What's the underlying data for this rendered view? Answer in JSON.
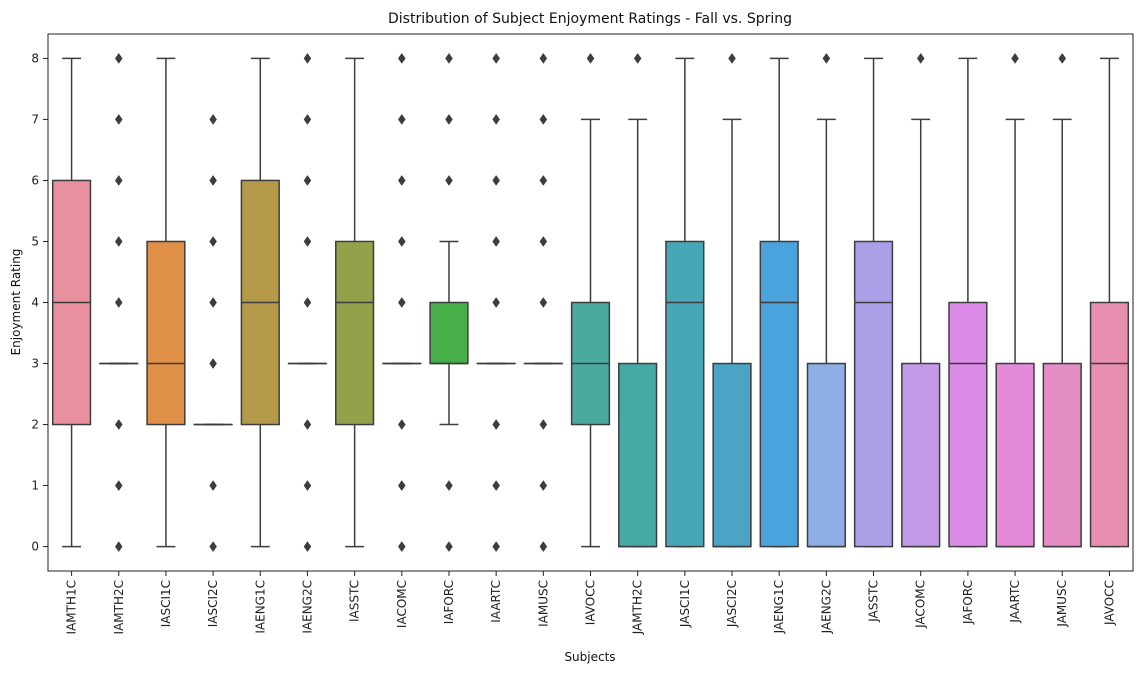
{
  "chart_data": {
    "type": "box",
    "title": "Distribution of Subject Enjoyment Ratings - Fall vs. Spring",
    "xlabel": "Subjects",
    "ylabel": "Enjoyment Rating",
    "ylim": [
      -0.4,
      8.4
    ],
    "yticks": [
      0,
      1,
      2,
      3,
      4,
      5,
      6,
      7,
      8
    ],
    "grid": false,
    "categories": [
      "IAMTH1C",
      "IAMTH2C",
      "IASCI1C",
      "IASCI2C",
      "IAENG1C",
      "IAENG2C",
      "IASSTC",
      "IACOMC",
      "IAFORC",
      "IAARTC",
      "IAMUSC",
      "IAVOCC",
      "JAMTH2C",
      "JASCI1C",
      "JASCI2C",
      "JAENG1C",
      "JAENG2C",
      "JASSTC",
      "JACOMC",
      "JAFORC",
      "JAARTC",
      "JAMUSC",
      "JAVOCC"
    ],
    "boxes": [
      {
        "label": "IAMTH1C",
        "q1": 2,
        "median": 4,
        "q3": 6,
        "whisker_low": 0,
        "whisker_high": 8,
        "outliers": [],
        "color": "#e8909e"
      },
      {
        "label": "IAMTH2C",
        "q1": 3,
        "median": 3,
        "q3": 3,
        "whisker_low": 3,
        "whisker_high": 3,
        "outliers": [
          0,
          1,
          2,
          4,
          5,
          6,
          7,
          8
        ],
        "color": "#e79468"
      },
      {
        "label": "IASCI1C",
        "q1": 2,
        "median": 3,
        "q3": 5,
        "whisker_low": 0,
        "whisker_high": 8,
        "outliers": [],
        "color": "#e08f47"
      },
      {
        "label": "IASCI2C",
        "q1": 2,
        "median": 2,
        "q3": 2,
        "whisker_low": 2,
        "whisker_high": 2,
        "outliers": [
          0,
          1,
          3,
          4,
          5,
          6,
          7
        ],
        "color": "#cc9a3e"
      },
      {
        "label": "IAENG1C",
        "q1": 2,
        "median": 4,
        "q3": 6,
        "whisker_low": 0,
        "whisker_high": 8,
        "outliers": [],
        "color": "#b49a48"
      },
      {
        "label": "IAENG2C",
        "q1": 3,
        "median": 3,
        "q3": 3,
        "whisker_low": 3,
        "whisker_high": 3,
        "outliers": [
          0,
          1,
          2,
          4,
          5,
          6,
          7,
          8
        ],
        "color": "#a39c44"
      },
      {
        "label": "IASSTC",
        "q1": 2,
        "median": 4,
        "q3": 5,
        "whisker_low": 0,
        "whisker_high": 8,
        "outliers": [],
        "color": "#93a24a"
      },
      {
        "label": "IACOMC",
        "q1": 3,
        "median": 3,
        "q3": 3,
        "whisker_low": 3,
        "whisker_high": 3,
        "outliers": [
          0,
          1,
          2,
          4,
          5,
          6,
          7,
          8
        ],
        "color": "#6fae47"
      },
      {
        "label": "IAFORC",
        "q1": 3,
        "median": 3,
        "q3": 4,
        "whisker_low": 2,
        "whisker_high": 5,
        "outliers": [
          0,
          1,
          6,
          7,
          8
        ],
        "color": "#47ae49"
      },
      {
        "label": "IAARTC",
        "q1": 3,
        "median": 3,
        "q3": 3,
        "whisker_low": 3,
        "whisker_high": 3,
        "outliers": [
          0,
          1,
          2,
          4,
          5,
          6,
          7,
          8
        ],
        "color": "#4aae7e"
      },
      {
        "label": "IAMUSC",
        "q1": 3,
        "median": 3,
        "q3": 3,
        "whisker_low": 3,
        "whisker_high": 3,
        "outliers": [
          0,
          1,
          2,
          4,
          5,
          6,
          7,
          8
        ],
        "color": "#49ad92"
      },
      {
        "label": "IAVOCC",
        "q1": 2,
        "median": 3,
        "q3": 4,
        "whisker_low": 0,
        "whisker_high": 7,
        "outliers": [
          8
        ],
        "color": "#4aaa9e"
      },
      {
        "label": "JAMTH2C",
        "q1": 0,
        "median": 0,
        "q3": 3,
        "whisker_low": 0,
        "whisker_high": 7,
        "outliers": [
          8
        ],
        "color": "#47a9a5"
      },
      {
        "label": "JASCI1C",
        "q1": 0,
        "median": 4,
        "q3": 5,
        "whisker_low": 0,
        "whisker_high": 8,
        "outliers": [],
        "color": "#48a7b6"
      },
      {
        "label": "JASCI2C",
        "q1": 0,
        "median": 0,
        "q3": 3,
        "whisker_low": 0,
        "whisker_high": 7,
        "outliers": [
          8
        ],
        "color": "#4ba4c5"
      },
      {
        "label": "JAENG1C",
        "q1": 0,
        "median": 4,
        "q3": 5,
        "whisker_low": 0,
        "whisker_high": 8,
        "outliers": [],
        "color": "#4aa3dc"
      },
      {
        "label": "JAENG2C",
        "q1": 0,
        "median": 0,
        "q3": 3,
        "whisker_low": 0,
        "whisker_high": 7,
        "outliers": [
          8
        ],
        "color": "#8daee6"
      },
      {
        "label": "JASSTC",
        "q1": 0,
        "median": 4,
        "q3": 5,
        "whisker_low": 0,
        "whisker_high": 8,
        "outliers": [],
        "color": "#ab9fe8"
      },
      {
        "label": "JACOMC",
        "q1": 0,
        "median": 0,
        "q3": 3,
        "whisker_low": 0,
        "whisker_high": 7,
        "outliers": [
          8
        ],
        "color": "#c39ae8"
      },
      {
        "label": "JAFORC",
        "q1": 0,
        "median": 3,
        "q3": 4,
        "whisker_low": 0,
        "whisker_high": 8,
        "outliers": [],
        "color": "#dc8ae8"
      },
      {
        "label": "JAARTC",
        "q1": 0,
        "median": 0,
        "q3": 3,
        "whisker_low": 0,
        "whisker_high": 7,
        "outliers": [
          8
        ],
        "color": "#e38bd8"
      },
      {
        "label": "JAMUSC",
        "q1": 0,
        "median": 0,
        "q3": 3,
        "whisker_low": 0,
        "whisker_high": 7,
        "outliers": [
          8
        ],
        "color": "#e58ec4"
      },
      {
        "label": "JAVOCC",
        "q1": 0,
        "median": 3,
        "q3": 4,
        "whisker_low": 0,
        "whisker_high": 8,
        "outliers": [],
        "color": "#e88eb1"
      }
    ],
    "line_color": "#3d3d3d",
    "outlier_color": "#3d3d3d"
  }
}
